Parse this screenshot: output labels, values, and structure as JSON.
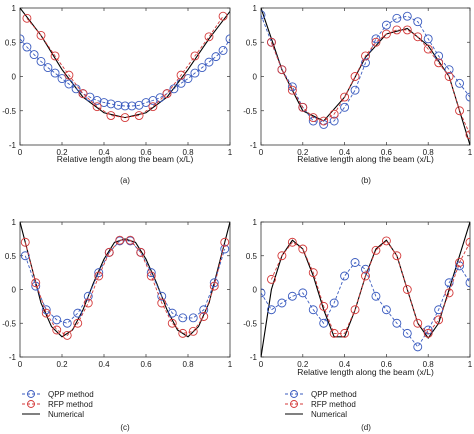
{
  "chart_data": [
    {
      "type": "line",
      "panel_label": "(a)",
      "xlabel": "Relative length along the beam (x/L)",
      "xlim": [
        0,
        1
      ],
      "ylim": [
        -1,
        1
      ],
      "xticks": [
        0,
        0.2,
        0.4,
        0.6,
        0.8,
        1
      ],
      "yticks": [
        -1,
        -0.5,
        0,
        0.5,
        1
      ],
      "xtick_labels": [
        "0",
        "0.2",
        "0.4",
        "0.6",
        "0.8",
        "1"
      ],
      "ytick_labels": [
        "-1",
        "-0.5",
        "0",
        "0.5",
        "1"
      ],
      "grid": false,
      "series": [
        {
          "name": "Numerical",
          "style": "solid",
          "color": "#000000",
          "x": [
            0,
            0.1,
            0.2,
            0.3,
            0.4,
            0.5,
            0.6,
            0.7,
            0.8,
            0.9,
            1
          ],
          "y": [
            1.0,
            0.6,
            0.1,
            -0.3,
            -0.53,
            -0.6,
            -0.53,
            -0.3,
            0.1,
            0.55,
            0.95
          ]
        },
        {
          "name": "QPP method",
          "style": "dashed-circle",
          "color": "#3a5bbf",
          "x": [
            0,
            0.033,
            0.067,
            0.1,
            0.133,
            0.167,
            0.2,
            0.233,
            0.267,
            0.3,
            0.333,
            0.367,
            0.4,
            0.433,
            0.467,
            0.5,
            0.533,
            0.567,
            0.6,
            0.633,
            0.667,
            0.7,
            0.733,
            0.767,
            0.8,
            0.833,
            0.867,
            0.9,
            0.933,
            0.967,
            1
          ],
          "y": [
            0.55,
            0.43,
            0.32,
            0.22,
            0.13,
            0.05,
            -0.03,
            -0.11,
            -0.18,
            -0.25,
            -0.3,
            -0.35,
            -0.38,
            -0.4,
            -0.42,
            -0.43,
            -0.43,
            -0.42,
            -0.38,
            -0.35,
            -0.31,
            -0.25,
            -0.18,
            -0.1,
            -0.03,
            0.05,
            0.13,
            0.21,
            0.29,
            0.38,
            0.55
          ]
        },
        {
          "name": "RFP method",
          "style": "dashed-circle",
          "color": "#d43a3a",
          "x": [
            0.033,
            0.1,
            0.167,
            0.233,
            0.3,
            0.367,
            0.433,
            0.5,
            0.567,
            0.633,
            0.7,
            0.767,
            0.833,
            0.9,
            0.967
          ],
          "y": [
            0.85,
            0.6,
            0.3,
            0.02,
            -0.25,
            -0.44,
            -0.57,
            -0.6,
            -0.57,
            -0.44,
            -0.25,
            0.02,
            0.3,
            0.58,
            0.88
          ]
        }
      ]
    },
    {
      "type": "line",
      "panel_label": "(b)",
      "xlabel": "Relative length along the beam (x/L)",
      "xlim": [
        0,
        1
      ],
      "ylim": [
        -1,
        1
      ],
      "xticks": [
        0,
        0.2,
        0.4,
        0.6,
        0.8,
        1
      ],
      "yticks": [
        -1,
        -0.5,
        0,
        0.5,
        1
      ],
      "xtick_labels": [
        "0",
        "0.2",
        "0.4",
        "0.6",
        "0.8",
        "1"
      ],
      "ytick_labels": [
        "-1",
        "-0.5",
        "0",
        "0.5",
        "1"
      ],
      "grid": false,
      "series": [
        {
          "name": "Numerical",
          "style": "solid",
          "color": "#000000",
          "x": [
            0,
            0.1,
            0.2,
            0.3,
            0.4,
            0.5,
            0.6,
            0.7,
            0.8,
            0.9,
            1
          ],
          "y": [
            1.0,
            0.1,
            -0.5,
            -0.65,
            -0.3,
            0.28,
            0.62,
            0.7,
            0.45,
            0.0,
            -1.0
          ]
        },
        {
          "name": "QPP method",
          "style": "dashed-circle",
          "color": "#3a5bbf",
          "x": [
            0,
            0.05,
            0.1,
            0.15,
            0.2,
            0.25,
            0.3,
            0.35,
            0.4,
            0.45,
            0.5,
            0.55,
            0.6,
            0.65,
            0.7,
            0.75,
            0.8,
            0.85,
            0.9,
            0.95,
            1
          ],
          "y": [
            0.9,
            0.5,
            0.1,
            -0.15,
            -0.45,
            -0.65,
            -0.7,
            -0.65,
            -0.45,
            -0.2,
            0.2,
            0.55,
            0.75,
            0.85,
            0.88,
            0.8,
            0.55,
            0.3,
            0.1,
            -0.1,
            -0.3
          ]
        },
        {
          "name": "RFP method",
          "style": "dashed-circle",
          "color": "#d43a3a",
          "x": [
            0.05,
            0.1,
            0.15,
            0.2,
            0.25,
            0.3,
            0.35,
            0.4,
            0.45,
            0.5,
            0.55,
            0.6,
            0.65,
            0.7,
            0.75,
            0.8,
            0.85,
            0.9,
            0.95,
            1
          ],
          "y": [
            0.5,
            0.1,
            -0.2,
            -0.45,
            -0.6,
            -0.65,
            -0.55,
            -0.3,
            0.0,
            0.3,
            0.5,
            0.62,
            0.68,
            0.68,
            0.58,
            0.4,
            0.2,
            0.0,
            -0.5,
            -0.85
          ]
        }
      ]
    },
    {
      "type": "line",
      "panel_label": "(c)",
      "xlim": [
        0,
        1
      ],
      "ylim": [
        -1,
        1
      ],
      "xticks": [
        0,
        0.2,
        0.4,
        0.6,
        0.8,
        1
      ],
      "yticks": [
        -1,
        -0.5,
        0,
        0.5,
        1
      ],
      "xtick_labels": [
        "0",
        "0.2",
        "0.4",
        "0.6",
        "0.8",
        "1"
      ],
      "ytick_labels": [
        "-1",
        "-0.5",
        "0",
        "0.5",
        "1"
      ],
      "grid": false,
      "series": [
        {
          "name": "Numerical",
          "style": "solid",
          "color": "#000000",
          "x": [
            0,
            0.05,
            0.1,
            0.15,
            0.2,
            0.25,
            0.3,
            0.35,
            0.4,
            0.45,
            0.5,
            0.55,
            0.6,
            0.65,
            0.7,
            0.75,
            0.8,
            0.85,
            0.9,
            0.95,
            1
          ],
          "y": [
            1.0,
            0.4,
            -0.2,
            -0.55,
            -0.7,
            -0.6,
            -0.3,
            0.1,
            0.45,
            0.7,
            0.75,
            0.7,
            0.45,
            0.1,
            -0.3,
            -0.6,
            -0.7,
            -0.55,
            -0.2,
            0.4,
            1.0
          ]
        },
        {
          "name": "QPP method",
          "style": "dashed-circle",
          "color": "#3a5bbf",
          "x": [
            0.025,
            0.075,
            0.125,
            0.175,
            0.225,
            0.275,
            0.325,
            0.375,
            0.425,
            0.475,
            0.525,
            0.575,
            0.625,
            0.675,
            0.725,
            0.775,
            0.825,
            0.875,
            0.925,
            0.975
          ],
          "y": [
            0.5,
            0.05,
            -0.3,
            -0.45,
            -0.5,
            -0.35,
            -0.1,
            0.25,
            0.55,
            0.72,
            0.72,
            0.55,
            0.25,
            -0.1,
            -0.35,
            -0.42,
            -0.42,
            -0.3,
            0.1,
            0.6
          ]
        },
        {
          "name": "RFP method",
          "style": "dashed-circle",
          "color": "#d43a3a",
          "x": [
            0.025,
            0.075,
            0.125,
            0.175,
            0.225,
            0.275,
            0.325,
            0.375,
            0.425,
            0.475,
            0.525,
            0.575,
            0.625,
            0.675,
            0.725,
            0.775,
            0.825,
            0.875,
            0.925,
            0.975
          ],
          "y": [
            0.7,
            0.1,
            -0.35,
            -0.6,
            -0.68,
            -0.5,
            -0.2,
            0.2,
            0.55,
            0.73,
            0.73,
            0.55,
            0.2,
            -0.2,
            -0.5,
            -0.65,
            -0.62,
            -0.4,
            0.05,
            0.7
          ]
        }
      ]
    },
    {
      "type": "line",
      "panel_label": "(d)",
      "xlabel": "Relative length along the beam (x/L)",
      "xlim": [
        0,
        1
      ],
      "ylim": [
        -1,
        1
      ],
      "xticks": [
        0,
        0.2,
        0.4,
        0.6,
        0.8,
        1
      ],
      "yticks": [
        -1,
        -0.5,
        0,
        0.5,
        1
      ],
      "xtick_labels": [
        "0",
        "0.2",
        "0.4",
        "0.6",
        "0.8",
        "1"
      ],
      "ytick_labels": [
        "-1",
        "-0.5",
        "0",
        "0.5",
        "1"
      ],
      "grid": false,
      "series": [
        {
          "name": "Numerical",
          "style": "solid",
          "color": "#000000",
          "x": [
            0,
            0.05,
            0.1,
            0.15,
            0.2,
            0.25,
            0.3,
            0.35,
            0.4,
            0.45,
            0.5,
            0.55,
            0.6,
            0.65,
            0.7,
            0.75,
            0.8,
            0.85,
            0.9,
            0.95,
            1
          ],
          "y": [
            -1.0,
            0.0,
            0.5,
            0.73,
            0.6,
            0.2,
            -0.3,
            -0.7,
            -0.7,
            -0.3,
            0.2,
            0.6,
            0.73,
            0.5,
            0.0,
            -0.5,
            -0.72,
            -0.5,
            0.0,
            0.5,
            1.0
          ]
        },
        {
          "name": "QPP method",
          "style": "dashed-circle",
          "color": "#3a5bbf",
          "x": [
            0,
            0.05,
            0.1,
            0.15,
            0.2,
            0.25,
            0.3,
            0.35,
            0.4,
            0.45,
            0.5,
            0.55,
            0.6,
            0.65,
            0.7,
            0.75,
            0.8,
            0.85,
            0.9,
            0.95,
            1
          ],
          "y": [
            -0.05,
            -0.3,
            -0.2,
            -0.1,
            -0.05,
            -0.3,
            -0.5,
            -0.2,
            0.2,
            0.4,
            0.3,
            -0.1,
            -0.3,
            -0.5,
            -0.65,
            -0.85,
            -0.6,
            -0.3,
            0.1,
            0.35,
            0.1
          ]
        },
        {
          "name": "RFP method",
          "style": "dashed-circle",
          "color": "#d43a3a",
          "x": [
            0.05,
            0.1,
            0.15,
            0.2,
            0.25,
            0.3,
            0.35,
            0.4,
            0.45,
            0.5,
            0.55,
            0.6,
            0.65,
            0.7,
            0.75,
            0.8,
            0.85,
            0.9,
            0.95,
            1
          ],
          "y": [
            0.15,
            0.5,
            0.7,
            0.6,
            0.25,
            -0.25,
            -0.65,
            -0.65,
            -0.3,
            0.2,
            0.58,
            0.72,
            0.5,
            0.0,
            -0.5,
            -0.65,
            -0.45,
            -0.05,
            0.4,
            0.7
          ]
        }
      ]
    }
  ]
}
